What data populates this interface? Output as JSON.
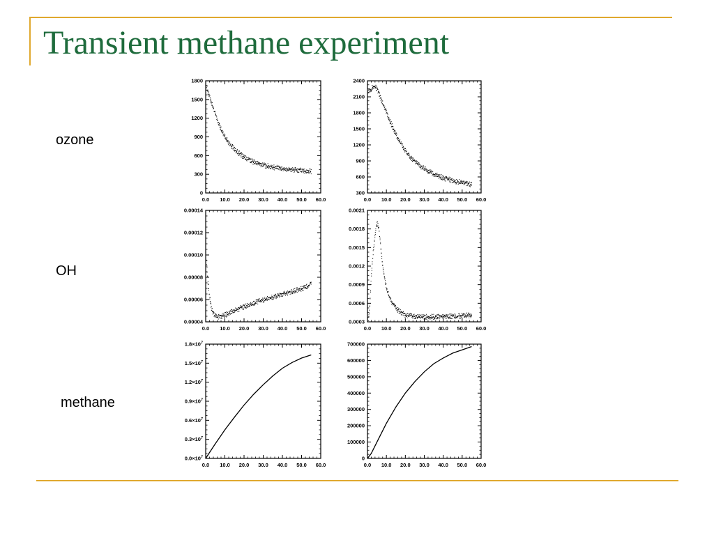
{
  "slide": {
    "title": "Transient methane experiment",
    "title_color": "#1e6b3c",
    "accent_color": "#e0a82e",
    "row_labels": [
      "ozone",
      "OH",
      "methane"
    ]
  },
  "chart_data": [
    {
      "type": "scatter",
      "row": "ozone",
      "column": "left",
      "x_ticks": [
        "0.0",
        "10.0",
        "20.0",
        "30.0",
        "40.0",
        "50.0",
        "60.0"
      ],
      "y_ticks": [
        "0",
        "300",
        "600",
        "900",
        "1200",
        "1500",
        "1800"
      ],
      "xlim": [
        0,
        60
      ],
      "ylim": [
        0,
        1800
      ],
      "points": [
        [
          0.5,
          1680
        ],
        [
          2,
          1540
        ],
        [
          4,
          1350
        ],
        [
          6,
          1160
        ],
        [
          8,
          1010
        ],
        [
          10,
          890
        ],
        [
          12,
          800
        ],
        [
          14,
          725
        ],
        [
          16,
          660
        ],
        [
          18,
          610
        ],
        [
          20,
          565
        ],
        [
          22,
          530
        ],
        [
          25,
          490
        ],
        [
          28,
          455
        ],
        [
          31,
          430
        ],
        [
          34,
          410
        ],
        [
          37,
          395
        ],
        [
          40,
          380
        ],
        [
          43,
          370
        ],
        [
          46,
          360
        ],
        [
          49,
          350
        ],
        [
          52,
          340
        ],
        [
          55,
          330
        ]
      ]
    },
    {
      "type": "scatter",
      "row": "ozone",
      "column": "right",
      "x_ticks": [
        "0.0",
        "10.0",
        "20.0",
        "30.0",
        "40.0",
        "50.0",
        "60.0"
      ],
      "y_ticks": [
        "300",
        "600",
        "900",
        "1200",
        "1500",
        "1800",
        "2100",
        "2400"
      ],
      "xlim": [
        0,
        60
      ],
      "ylim": [
        300,
        2400
      ],
      "points": [
        [
          0.5,
          2220
        ],
        [
          1.5,
          2220
        ],
        [
          3,
          2270
        ],
        [
          4,
          2280
        ],
        [
          5,
          2240
        ],
        [
          6,
          2150
        ],
        [
          8,
          1980
        ],
        [
          10,
          1800
        ],
        [
          12,
          1620
        ],
        [
          14,
          1460
        ],
        [
          16,
          1320
        ],
        [
          18,
          1190
        ],
        [
          20,
          1080
        ],
        [
          22,
          990
        ],
        [
          25,
          880
        ],
        [
          28,
          790
        ],
        [
          31,
          720
        ],
        [
          34,
          660
        ],
        [
          37,
          610
        ],
        [
          40,
          570
        ],
        [
          43,
          540
        ],
        [
          46,
          510
        ],
        [
          49,
          490
        ],
        [
          52,
          470
        ],
        [
          55,
          440
        ]
      ]
    },
    {
      "type": "scatter",
      "row": "OH",
      "column": "left",
      "x_ticks": [
        "0.0",
        "10.0",
        "20.0",
        "30.0",
        "40.0",
        "50.0",
        "60.0"
      ],
      "y_ticks": [
        "0.00004",
        "0.00006",
        "0.00008",
        "0.00010",
        "0.00012",
        "0.00014"
      ],
      "xlim": [
        0,
        60
      ],
      "ylim": [
        4e-05,
        0.00014
      ],
      "points": [
        [
          0.5,
          9.3e-05
        ],
        [
          1,
          7.8e-05
        ],
        [
          2,
          6.2e-05
        ],
        [
          3,
          5.2e-05
        ],
        [
          4,
          4.7e-05
        ],
        [
          5,
          4.5e-05
        ],
        [
          6,
          4.4e-05
        ],
        [
          8,
          4.45e-05
        ],
        [
          10,
          4.55e-05
        ],
        [
          13,
          4.8e-05
        ],
        [
          16,
          5e-05
        ],
        [
          20,
          5.3e-05
        ],
        [
          24,
          5.5e-05
        ],
        [
          28,
          5.8e-05
        ],
        [
          32,
          6e-05
        ],
        [
          36,
          6.2e-05
        ],
        [
          40,
          6.4e-05
        ],
        [
          44,
          6.6e-05
        ],
        [
          48,
          6.8e-05
        ],
        [
          52,
          7e-05
        ],
        [
          55,
          7.4e-05
        ]
      ]
    },
    {
      "type": "scatter",
      "row": "OH",
      "column": "right",
      "x_ticks": [
        "0.0",
        "10.0",
        "20.0",
        "30.0",
        "40.0",
        "50.0",
        "60.0"
      ],
      "y_ticks": [
        "0.0003",
        "0.0006",
        "0.0009",
        "0.0012",
        "0.0015",
        "0.0018",
        "0.0021"
      ],
      "xlim": [
        0,
        60
      ],
      "ylim": [
        0.0003,
        0.0021
      ],
      "points": [
        [
          0.5,
          0.00035
        ],
        [
          1,
          0.00045
        ],
        [
          1.5,
          0.0007
        ],
        [
          2,
          0.001
        ],
        [
          3,
          0.0014
        ],
        [
          4,
          0.0017
        ],
        [
          5,
          0.0019
        ],
        [
          6,
          0.0018
        ],
        [
          7,
          0.0015
        ],
        [
          8,
          0.0012
        ],
        [
          9,
          0.001
        ],
        [
          10,
          0.00085
        ],
        [
          12,
          0.00065
        ],
        [
          14,
          0.00055
        ],
        [
          16,
          0.00048
        ],
        [
          18,
          0.00043
        ],
        [
          20,
          0.0004
        ],
        [
          24,
          0.00038
        ],
        [
          28,
          0.00037
        ],
        [
          32,
          0.00037
        ],
        [
          36,
          0.00037
        ],
        [
          40,
          0.00038
        ],
        [
          44,
          0.00038
        ],
        [
          48,
          0.00038
        ],
        [
          52,
          0.00039
        ],
        [
          55,
          0.0004
        ]
      ]
    },
    {
      "type": "line",
      "row": "methane",
      "column": "left",
      "x_ticks": [
        "0.0",
        "10.0",
        "20.0",
        "30.0",
        "40.0",
        "50.0",
        "60.0"
      ],
      "y_tick_mantissas": [
        "0.0",
        "0.3",
        "0.6",
        "0.9",
        "1.2",
        "1.5",
        "1.8"
      ],
      "y_tick_suffix": "×10",
      "y_tick_exponent": "7",
      "xlim": [
        0,
        60
      ],
      "ylim": [
        0,
        18000000
      ],
      "points": [
        [
          0,
          0
        ],
        [
          5,
          2300000
        ],
        [
          10,
          4500000
        ],
        [
          15,
          6500000
        ],
        [
          20,
          8400000
        ],
        [
          25,
          10100000
        ],
        [
          30,
          11600000
        ],
        [
          35,
          13000000
        ],
        [
          40,
          14200000
        ],
        [
          45,
          15100000
        ],
        [
          50,
          15800000
        ],
        [
          55,
          16300000
        ]
      ]
    },
    {
      "type": "line",
      "row": "methane",
      "column": "right",
      "x_ticks": [
        "0.0",
        "10.0",
        "20.0",
        "30.0",
        "40.0",
        "50.0",
        "60.0"
      ],
      "y_ticks": [
        "0",
        "100000",
        "200000",
        "300000",
        "400000",
        "500000",
        "600000",
        "700000"
      ],
      "xlim": [
        0,
        60
      ],
      "ylim": [
        0,
        700000
      ],
      "points": [
        [
          0,
          0
        ],
        [
          2,
          30000
        ],
        [
          5,
          100000
        ],
        [
          10,
          215000
        ],
        [
          15,
          315000
        ],
        [
          20,
          400000
        ],
        [
          25,
          470000
        ],
        [
          30,
          530000
        ],
        [
          35,
          580000
        ],
        [
          40,
          615000
        ],
        [
          45,
          645000
        ],
        [
          50,
          665000
        ],
        [
          55,
          685000
        ]
      ]
    }
  ]
}
